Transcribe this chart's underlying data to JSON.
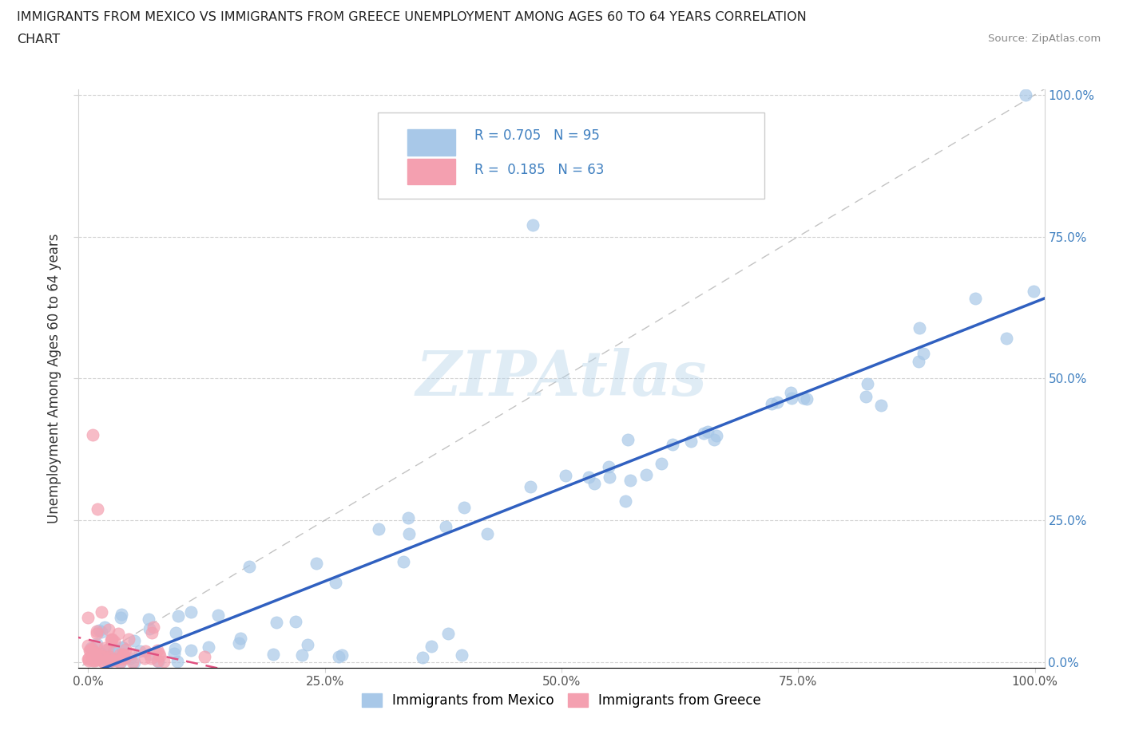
{
  "title_line1": "IMMIGRANTS FROM MEXICO VS IMMIGRANTS FROM GREECE UNEMPLOYMENT AMONG AGES 60 TO 64 YEARS CORRELATION",
  "title_line2": "CHART",
  "source": "Source: ZipAtlas.com",
  "ylabel": "Unemployment Among Ages 60 to 64 years",
  "r_mexico": 0.705,
  "n_mexico": 95,
  "r_greece": 0.185,
  "n_greece": 63,
  "color_mexico": "#a8c8e8",
  "color_greece": "#f4a0b0",
  "color_mexico_line": "#3060c0",
  "color_greece_line": "#e05080",
  "color_right_ticks": "#4080c0",
  "watermark": "ZIPAtlas",
  "xlim": [
    0.0,
    1.0
  ],
  "ylim": [
    0.0,
    1.0
  ],
  "xticks": [
    0.0,
    0.25,
    0.5,
    0.75,
    1.0
  ],
  "yticks": [
    0.0,
    0.25,
    0.5,
    0.75,
    1.0
  ],
  "xticklabels": [
    "0.0%",
    "25.0%",
    "50.0%",
    "75.0%",
    "100.0%"
  ],
  "yticklabels_right": [
    "0.0%",
    "25.0%",
    "50.0%",
    "75.0%",
    "100.0%"
  ]
}
